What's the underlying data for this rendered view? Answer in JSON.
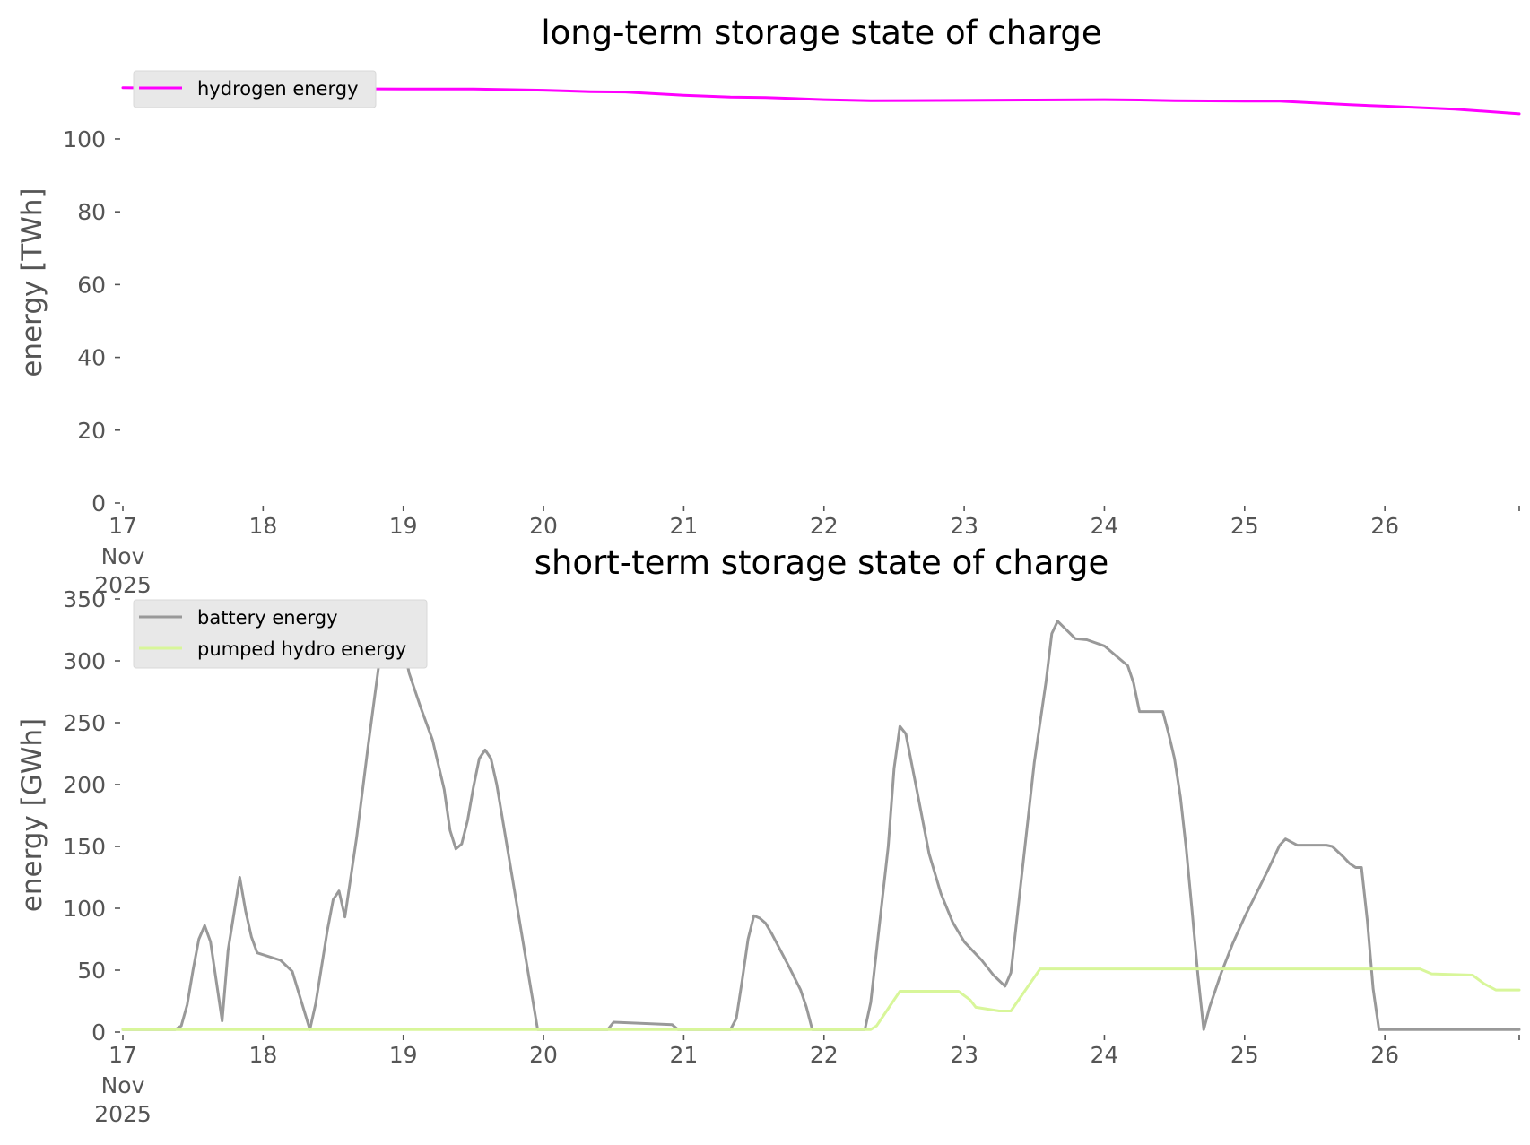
{
  "chart_data": [
    {
      "type": "line",
      "title": "long-term storage state of charge",
      "xlabel": "",
      "ylabel": "energy [TWh]",
      "xlim": [
        "2025-11-17 00:00",
        "2025-11-26 23:00"
      ],
      "ylim": [
        0,
        116
      ],
      "yticks": [
        "0",
        "20",
        "40",
        "60",
        "80",
        "100"
      ],
      "xticks": [
        "17",
        "18",
        "19",
        "20",
        "21",
        "22",
        "23",
        "24",
        "25",
        "26"
      ],
      "xtick_first_extra": [
        "Nov",
        "2025"
      ],
      "grid": false,
      "legend_position": "top-left",
      "series": [
        {
          "name": "hydrogen energy",
          "color": "#ff00ff",
          "points": [
            [
              "2025-11-17 00:00",
              114.1
            ],
            [
              "2025-11-17 12:00",
              113.9
            ],
            [
              "2025-11-18 00:00",
              113.8
            ],
            [
              "2025-11-18 12:00",
              113.8
            ],
            [
              "2025-11-19 00:00",
              113.7
            ],
            [
              "2025-11-19 12:00",
              113.7
            ],
            [
              "2025-11-20 00:00",
              113.4
            ],
            [
              "2025-11-20 08:00",
              113.0
            ],
            [
              "2025-11-20 14:00",
              112.9
            ],
            [
              "2025-11-21 00:00",
              112.0
            ],
            [
              "2025-11-21 08:00",
              111.5
            ],
            [
              "2025-11-21 14:00",
              111.4
            ],
            [
              "2025-11-22 00:00",
              110.8
            ],
            [
              "2025-11-22 08:00",
              110.5
            ],
            [
              "2025-11-23 00:00",
              110.6
            ],
            [
              "2025-11-23 12:00",
              110.7
            ],
            [
              "2025-11-24 00:00",
              110.8
            ],
            [
              "2025-11-24 06:00",
              110.7
            ],
            [
              "2025-11-24 12:00",
              110.5
            ],
            [
              "2025-11-25 00:00",
              110.4
            ],
            [
              "2025-11-25 06:00",
              110.4
            ],
            [
              "2025-11-25 18:00",
              109.4
            ],
            [
              "2025-11-26 00:00",
              109.0
            ],
            [
              "2025-11-26 12:00",
              108.2
            ],
            [
              "2025-11-26 23:00",
              106.9
            ]
          ]
        }
      ]
    },
    {
      "type": "line",
      "title": "short-term storage state of charge",
      "xlabel": "",
      "ylabel": "energy [GWh]",
      "xlim": [
        "2025-11-17 00:00",
        "2025-11-26 23:00"
      ],
      "ylim": [
        0,
        350
      ],
      "yticks": [
        "0",
        "50",
        "100",
        "150",
        "200",
        "250",
        "300",
        "350"
      ],
      "xticks": [
        "17",
        "18",
        "19",
        "20",
        "21",
        "22",
        "23",
        "24",
        "25",
        "26"
      ],
      "xtick_first_extra": [
        "Nov",
        "2025"
      ],
      "grid": false,
      "legend_position": "top-left",
      "series": [
        {
          "name": "battery energy",
          "color": "#999999",
          "points": [
            [
              "2025-11-17 00:00",
              2
            ],
            [
              "2025-11-17 09:00",
              2
            ],
            [
              "2025-11-17 10:00",
              5
            ],
            [
              "2025-11-17 11:00",
              22
            ],
            [
              "2025-11-17 12:00",
              50
            ],
            [
              "2025-11-17 13:00",
              75
            ],
            [
              "2025-11-17 14:00",
              86
            ],
            [
              "2025-11-17 15:00",
              73
            ],
            [
              "2025-11-17 17:00",
              9
            ],
            [
              "2025-11-17 18:00",
              66
            ],
            [
              "2025-11-17 20:00",
              125
            ],
            [
              "2025-11-17 21:00",
              98
            ],
            [
              "2025-11-17 22:00",
              77
            ],
            [
              "2025-11-17 23:00",
              64
            ],
            [
              "2025-11-18 03:00",
              58
            ],
            [
              "2025-11-18 05:00",
              49
            ],
            [
              "2025-11-18 08:00",
              2
            ],
            [
              "2025-11-18 09:00",
              23
            ],
            [
              "2025-11-18 11:00",
              82
            ],
            [
              "2025-11-18 12:00",
              107
            ],
            [
              "2025-11-18 13:00",
              114
            ],
            [
              "2025-11-18 14:00",
              93
            ],
            [
              "2025-11-18 16:00",
              157
            ],
            [
              "2025-11-18 18:00",
              232
            ],
            [
              "2025-11-18 20:00",
              303
            ],
            [
              "2025-11-18 23:00",
              336
            ],
            [
              "2025-11-19 01:00",
              290
            ],
            [
              "2025-11-19 03:00",
              262
            ],
            [
              "2025-11-19 05:00",
              236
            ],
            [
              "2025-11-19 07:00",
              196
            ],
            [
              "2025-11-19 08:00",
              163
            ],
            [
              "2025-11-19 09:00",
              148
            ],
            [
              "2025-11-19 10:00",
              152
            ],
            [
              "2025-11-19 11:00",
              171
            ],
            [
              "2025-11-19 12:00",
              198
            ],
            [
              "2025-11-19 13:00",
              221
            ],
            [
              "2025-11-19 14:00",
              228
            ],
            [
              "2025-11-19 15:00",
              221
            ],
            [
              "2025-11-19 16:00",
              200
            ],
            [
              "2025-11-19 19:00",
              115
            ],
            [
              "2025-11-19 23:00",
              2
            ],
            [
              "2025-11-20 11:00",
              2
            ],
            [
              "2025-11-20 12:00",
              8
            ],
            [
              "2025-11-20 22:00",
              6
            ],
            [
              "2025-11-20 23:00",
              2
            ],
            [
              "2025-11-21 08:00",
              2
            ],
            [
              "2025-11-21 09:00",
              11
            ],
            [
              "2025-11-21 10:00",
              42
            ],
            [
              "2025-11-21 11:00",
              75
            ],
            [
              "2025-11-21 12:00",
              94
            ],
            [
              "2025-11-21 13:00",
              92
            ],
            [
              "2025-11-21 14:00",
              88
            ],
            [
              "2025-11-21 15:00",
              80
            ],
            [
              "2025-11-21 18:00",
              53
            ],
            [
              "2025-11-21 20:00",
              34
            ],
            [
              "2025-11-21 21:00",
              20
            ],
            [
              "2025-11-21 22:00",
              2
            ],
            [
              "2025-11-22 07:00",
              2
            ],
            [
              "2025-11-22 08:00",
              24
            ],
            [
              "2025-11-22 11:00",
              150
            ],
            [
              "2025-11-22 12:00",
              213
            ],
            [
              "2025-11-22 13:00",
              247
            ],
            [
              "2025-11-22 14:00",
              241
            ],
            [
              "2025-11-22 16:00",
              193
            ],
            [
              "2025-11-22 18:00",
              144
            ],
            [
              "2025-11-22 20:00",
              112
            ],
            [
              "2025-11-22 22:00",
              89
            ],
            [
              "2025-11-23 00:00",
              73
            ],
            [
              "2025-11-23 03:00",
              58
            ],
            [
              "2025-11-23 05:00",
              46
            ],
            [
              "2025-11-23 07:00",
              37
            ],
            [
              "2025-11-23 08:00",
              48
            ],
            [
              "2025-11-23 12:00",
              218
            ],
            [
              "2025-11-23 14:00",
              283
            ],
            [
              "2025-11-23 15:00",
              322
            ],
            [
              "2025-11-23 16:00",
              332
            ],
            [
              "2025-11-23 19:00",
              318
            ],
            [
              "2025-11-23 21:00",
              317
            ],
            [
              "2025-11-24 00:00",
              312
            ],
            [
              "2025-11-24 02:00",
              304
            ],
            [
              "2025-11-24 04:00",
              296
            ],
            [
              "2025-11-24 05:00",
              282
            ],
            [
              "2025-11-24 06:00",
              259
            ],
            [
              "2025-11-24 10:00",
              259
            ],
            [
              "2025-11-24 11:00",
              241
            ],
            [
              "2025-11-24 12:00",
              221
            ],
            [
              "2025-11-24 13:00",
              190
            ],
            [
              "2025-11-24 14:00",
              148
            ],
            [
              "2025-11-24 15:00",
              98
            ],
            [
              "2025-11-24 16:00",
              46
            ],
            [
              "2025-11-24 17:00",
              2
            ],
            [
              "2025-11-24 18:00",
              20
            ],
            [
              "2025-11-24 20:00",
              48
            ],
            [
              "2025-11-24 22:00",
              72
            ],
            [
              "2025-11-25 00:00",
              93
            ],
            [
              "2025-11-25 04:00",
              131
            ],
            [
              "2025-11-25 06:00",
              151
            ],
            [
              "2025-11-25 07:00",
              156
            ],
            [
              "2025-11-25 09:00",
              151
            ],
            [
              "2025-11-25 14:00",
              151
            ],
            [
              "2025-11-25 15:00",
              150
            ],
            [
              "2025-11-25 17:00",
              141
            ],
            [
              "2025-11-25 18:00",
              136
            ],
            [
              "2025-11-25 19:00",
              133
            ],
            [
              "2025-11-25 20:00",
              133
            ],
            [
              "2025-11-25 21:00",
              90
            ],
            [
              "2025-11-25 22:00",
              35
            ],
            [
              "2025-11-25 23:00",
              2
            ],
            [
              "2025-11-26 23:00",
              2
            ]
          ]
        },
        {
          "name": "pumped hydro energy",
          "color": "#d8f69a",
          "points": [
            [
              "2025-11-17 00:00",
              2
            ],
            [
              "2025-11-22 08:00",
              2
            ],
            [
              "2025-11-22 09:00",
              5
            ],
            [
              "2025-11-22 13:00",
              33
            ],
            [
              "2025-11-22 23:00",
              33
            ],
            [
              "2025-11-23 01:00",
              26
            ],
            [
              "2025-11-23 02:00",
              20
            ],
            [
              "2025-11-23 06:00",
              17
            ],
            [
              "2025-11-23 08:00",
              17
            ],
            [
              "2025-11-23 13:00",
              51
            ],
            [
              "2025-11-26 06:00",
              51
            ],
            [
              "2025-11-26 08:00",
              47
            ],
            [
              "2025-11-26 15:00",
              46
            ],
            [
              "2025-11-26 17:00",
              39
            ],
            [
              "2025-11-26 19:00",
              34
            ],
            [
              "2025-11-26 23:00",
              34
            ]
          ]
        }
      ]
    }
  ]
}
